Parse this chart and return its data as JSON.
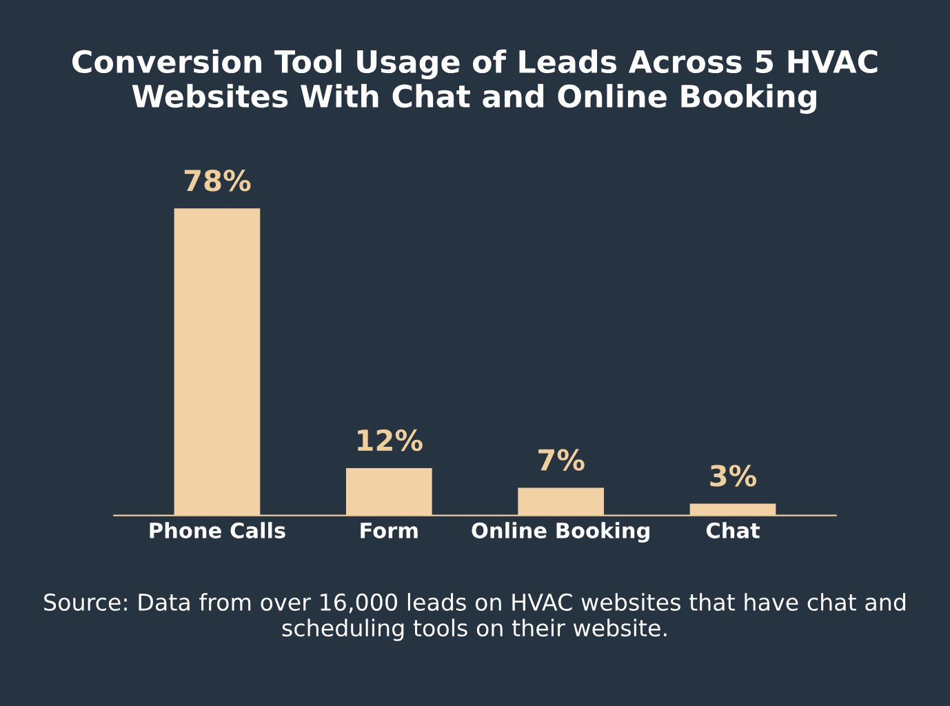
{
  "chart_data": {
    "type": "bar",
    "title": "Conversion Tool Usage of Leads Across 5 HVAC\nWebsites With Chat and Online Booking",
    "categories": [
      "Phone Calls",
      "Form",
      "Online Booking",
      "Chat"
    ],
    "values": [
      78,
      12,
      7,
      3
    ],
    "value_labels": [
      "78%",
      "12%",
      "7%",
      "3%"
    ],
    "color": "#f2d1a5",
    "annotations": [
      "Source: Data from over 16,000 leads on HVAC websites that have chat and scheduling tools on their website."
    ]
  }
}
